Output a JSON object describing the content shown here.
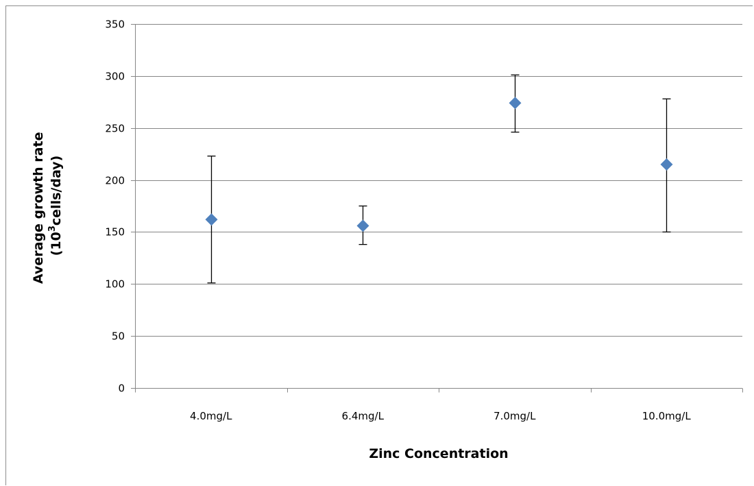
{
  "chart_data": {
    "type": "scatter",
    "title": "",
    "xlabel": "Zinc Concentration",
    "ylabel": {
      "line1": "Average growth rate",
      "line2_prefix": "(10",
      "line2_sup": "3",
      "line2_suffix": "cells/day)"
    },
    "categories": [
      "4.0mg/L",
      "6.4mg/L",
      "7.0mg/L",
      "10.0mg/L"
    ],
    "series": [
      {
        "values": [
          162,
          156,
          274,
          215
        ],
        "error_low": [
          101,
          138,
          246,
          150
        ],
        "error_high": [
          223,
          175,
          301,
          278
        ]
      }
    ],
    "ylim": [
      0,
      350
    ],
    "yticks": [
      0,
      50,
      100,
      150,
      200,
      250,
      300,
      350
    ],
    "grid": true,
    "marker": "diamond",
    "colors": {
      "marker": "#4f81bd",
      "gridline": "#868686",
      "axis": "#868686",
      "errorbar": "#000000"
    }
  }
}
